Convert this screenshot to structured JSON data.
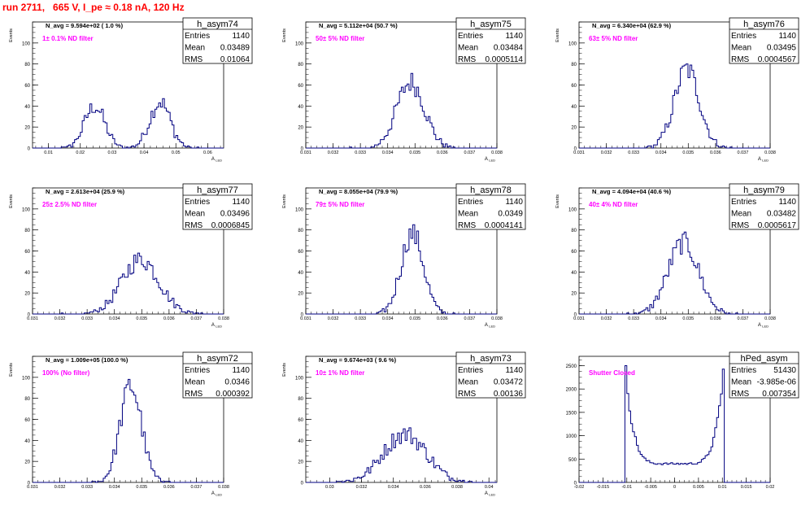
{
  "page": {
    "title": "run 2711,   665 V, I_pe ≈ 0.18 nA, 120 Hz",
    "stat_labels": {
      "entries": "Entries",
      "mean": "Mean",
      "rms": "RMS"
    },
    "colors": {
      "title": "#ff0000",
      "annotation": "#ff00ff",
      "histogram": "#000080",
      "axis": "#000000"
    }
  },
  "chart_data": [
    {
      "type": "histogram",
      "name": "h_asym74",
      "stats": {
        "entries": "1140",
        "mean": "0.03489",
        "rms": "0.01064"
      },
      "navg": "N_avg = 9.594e+02 ( 1.0 %)",
      "filter": "1± 0.1% ND filter",
      "xlabel": "A",
      "xlabel_sub": "LED",
      "ylabel": "Events",
      "xlim": [
        0.005,
        0.065
      ],
      "ylim": [
        0,
        120
      ],
      "xticks": [
        0.01,
        0.02,
        0.03,
        0.04,
        0.05,
        0.06
      ],
      "xticklabels": [
        "0.01",
        "0.02",
        "0.03",
        "0.04",
        "0.05",
        "0.06"
      ],
      "yticks": [
        0,
        20,
        40,
        60,
        80,
        100
      ],
      "peaks": [
        {
          "center": 0.0245,
          "sigma": 0.0032,
          "height": 40
        },
        {
          "center": 0.045,
          "sigma": 0.0032,
          "height": 44
        }
      ]
    },
    {
      "type": "histogram",
      "name": "h_asym75",
      "stats": {
        "entries": "1140",
        "mean": "0.03484",
        "rms": "0.0005114"
      },
      "navg": "N_avg = 5.112e+04 (50.7 %)",
      "filter": "50± 5% ND filter",
      "xlabel": "A",
      "xlabel_sub": "LED",
      "ylabel": "Events",
      "xlim": [
        0.031,
        0.038
      ],
      "ylim": [
        0,
        120
      ],
      "xticks": [
        0.031,
        0.032,
        0.033,
        0.034,
        0.035,
        0.036,
        0.037,
        0.038
      ],
      "xticklabels": [
        "0.031",
        "0.032",
        "0.033",
        "0.034",
        "0.035",
        "0.036",
        "0.037",
        "0.038"
      ],
      "yticks": [
        0,
        20,
        40,
        60,
        80,
        100
      ],
      "peaks": [
        {
          "center": 0.03484,
          "sigma": 0.00051,
          "height": 63
        }
      ]
    },
    {
      "type": "histogram",
      "name": "h_asym76",
      "stats": {
        "entries": "1140",
        "mean": "0.03495",
        "rms": "0.0004567"
      },
      "navg": "N_avg = 6.340e+04 (62.9 %)",
      "filter": "63± 5% ND filter",
      "xlabel": "A",
      "xlabel_sub": "LED",
      "ylabel": "Events",
      "xlim": [
        0.031,
        0.038
      ],
      "ylim": [
        0,
        120
      ],
      "xticks": [
        0.031,
        0.032,
        0.033,
        0.034,
        0.035,
        0.036,
        0.037,
        0.038
      ],
      "xticklabels": [
        "0.031",
        "0.032",
        "0.033",
        "0.034",
        "0.035",
        "0.036",
        "0.037",
        "0.038"
      ],
      "yticks": [
        0,
        20,
        40,
        60,
        80,
        100
      ],
      "peaks": [
        {
          "center": 0.03495,
          "sigma": 0.00046,
          "height": 75
        }
      ]
    },
    {
      "type": "histogram",
      "name": "h_asym77",
      "stats": {
        "entries": "1140",
        "mean": "0.03496",
        "rms": "0.0006845"
      },
      "navg": "N_avg = 2.613e+04 (25.9 %)",
      "filter": "25± 2.5% ND filter",
      "xlabel": "A",
      "xlabel_sub": "LED",
      "ylabel": "Events",
      "xlim": [
        0.031,
        0.038
      ],
      "ylim": [
        0,
        120
      ],
      "xticks": [
        0.031,
        0.032,
        0.033,
        0.034,
        0.035,
        0.036,
        0.037,
        0.038
      ],
      "xticklabels": [
        "0.031",
        "0.032",
        "0.033",
        "0.034",
        "0.035",
        "0.036",
        "0.037",
        "0.038"
      ],
      "yticks": [
        0,
        20,
        40,
        60,
        80,
        100
      ],
      "peaks": [
        {
          "center": 0.03496,
          "sigma": 0.00068,
          "height": 52
        }
      ]
    },
    {
      "type": "histogram",
      "name": "h_asym78",
      "stats": {
        "entries": "1140",
        "mean": "0.0349",
        "rms": "0.0004141"
      },
      "navg": "N_avg = 8.055e+04 (79.9 %)",
      "filter": "79± 5% ND filter",
      "xlabel": "A",
      "xlabel_sub": "LED",
      "ylabel": "Events",
      "xlim": [
        0.031,
        0.038
      ],
      "ylim": [
        0,
        120
      ],
      "xticks": [
        0.031,
        0.032,
        0.033,
        0.034,
        0.035,
        0.036,
        0.037,
        0.038
      ],
      "xticklabels": [
        "0.031",
        "0.032",
        "0.033",
        "0.034",
        "0.035",
        "0.036",
        "0.037",
        "0.038"
      ],
      "yticks": [
        0,
        20,
        40,
        60,
        80,
        100
      ],
      "peaks": [
        {
          "center": 0.0349,
          "sigma": 0.00041,
          "height": 77
        }
      ]
    },
    {
      "type": "histogram",
      "name": "h_asym79",
      "stats": {
        "entries": "1140",
        "mean": "0.03482",
        "rms": "0.0005617"
      },
      "navg": "N_avg = 4.094e+04 (40.6 %)",
      "filter": "40± 4% ND filter",
      "xlabel": "A",
      "xlabel_sub": "LED",
      "ylabel": "Events",
      "xlim": [
        0.031,
        0.038
      ],
      "ylim": [
        0,
        120
      ],
      "xticks": [
        0.031,
        0.032,
        0.033,
        0.034,
        0.035,
        0.036,
        0.037,
        0.038
      ],
      "xticklabels": [
        "0.031",
        "0.032",
        "0.033",
        "0.034",
        "0.035",
        "0.036",
        "0.037",
        "0.038"
      ],
      "yticks": [
        0,
        20,
        40,
        60,
        80,
        100
      ],
      "peaks": [
        {
          "center": 0.03482,
          "sigma": 0.00056,
          "height": 68
        }
      ]
    },
    {
      "type": "histogram",
      "name": "h_asym72",
      "stats": {
        "entries": "1140",
        "mean": "0.0346",
        "rms": "0.000392"
      },
      "navg": "N_avg = 1.009e+05 (100.0 %)",
      "filter": "100% (No filter)",
      "xlabel": "A",
      "xlabel_sub": "LED",
      "ylabel": "Events",
      "xlim": [
        0.031,
        0.038
      ],
      "ylim": [
        0,
        120
      ],
      "xticks": [
        0.031,
        0.032,
        0.033,
        0.034,
        0.035,
        0.036,
        0.037,
        0.038
      ],
      "xticklabels": [
        "0.031",
        "0.032",
        "0.033",
        "0.034",
        "0.035",
        "0.036",
        "0.037",
        "0.038"
      ],
      "yticks": [
        0,
        20,
        40,
        60,
        80,
        100
      ],
      "peaks": [
        {
          "center": 0.0346,
          "sigma": 0.00039,
          "height": 92
        }
      ]
    },
    {
      "type": "histogram",
      "name": "h_asym73",
      "stats": {
        "entries": "1140",
        "mean": "0.03472",
        "rms": "0.00136"
      },
      "navg": "N_avg = 9.674e+03 ( 9.6 %)",
      "filter": "10± 1% ND filter",
      "xlabel": "A",
      "xlabel_sub": "LED",
      "ylabel": "Events",
      "xlim": [
        0.0285,
        0.0405
      ],
      "ylim": [
        0,
        120
      ],
      "xticks": [
        0.03,
        0.032,
        0.034,
        0.036,
        0.038,
        0.04
      ],
      "xticklabels": [
        "0.03",
        "0.032",
        "0.034",
        "0.036",
        "0.038",
        "0.04"
      ],
      "yticks": [
        0,
        20,
        40,
        60,
        80,
        100
      ],
      "peaks": [
        {
          "center": 0.03472,
          "sigma": 0.00136,
          "height": 46
        }
      ]
    },
    {
      "type": "histogram",
      "name": "hPed_asym",
      "stats": {
        "entries": "51430",
        "mean": "-3.985e-06",
        "rms": "0.007354"
      },
      "navg": "",
      "filter": "Shutter Closed",
      "xlabel": "",
      "xlabel_sub": "",
      "ylabel": "",
      "xlim": [
        -0.02,
        0.02
      ],
      "ylim": [
        0,
        2700
      ],
      "xticks": [
        -0.02,
        -0.015,
        -0.01,
        -0.005,
        0,
        0.005,
        0.01,
        0.015,
        0.02
      ],
      "xticklabels": [
        "-0.02",
        "-0.015",
        "-0.01",
        "-0.005",
        "0",
        "0.005",
        "0.01",
        "0.015",
        "0.02"
      ],
      "yticks": [
        0,
        500,
        1000,
        1500,
        2000,
        2500
      ],
      "pedestal": {
        "edge": 0.0103,
        "floor": 400,
        "peak": 2500
      }
    }
  ]
}
